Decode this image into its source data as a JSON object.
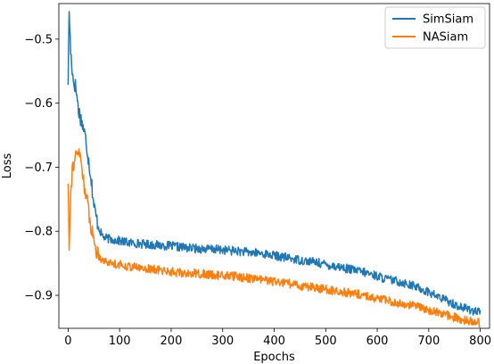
{
  "chart_data": {
    "type": "line",
    "title": "",
    "xlabel": "Epochs",
    "ylabel": "Loss",
    "xlim": [
      -18,
      818
    ],
    "ylim": [
      -0.9515,
      -0.4445
    ],
    "xticks": [
      0,
      100,
      200,
      300,
      400,
      500,
      600,
      700,
      800
    ],
    "yticks": [
      -0.9,
      -0.8,
      -0.7,
      -0.6,
      -0.5
    ],
    "ytick_labels": [
      "−0.9",
      "−0.8",
      "−0.7",
      "−0.6",
      "−0.5"
    ],
    "legend_position": "top-right",
    "grid": false,
    "series": [
      {
        "name": "SimSiam",
        "color": "#1f77b4",
        "x": [
          0,
          2,
          5,
          10,
          15,
          20,
          25,
          30,
          35,
          40,
          45,
          50,
          55,
          60,
          65,
          70,
          80,
          100,
          120,
          150,
          180,
          200,
          220,
          250,
          280,
          300,
          330,
          350,
          380,
          400,
          430,
          450,
          480,
          500,
          530,
          550,
          580,
          600,
          620,
          650,
          680,
          700,
          720,
          740,
          760,
          780,
          800
        ],
        "values": [
          -0.565,
          -0.456,
          -0.52,
          -0.565,
          -0.575,
          -0.61,
          -0.625,
          -0.64,
          -0.66,
          -0.69,
          -0.72,
          -0.76,
          -0.78,
          -0.795,
          -0.805,
          -0.81,
          -0.812,
          -0.815,
          -0.818,
          -0.82,
          -0.822,
          -0.823,
          -0.825,
          -0.827,
          -0.828,
          -0.829,
          -0.831,
          -0.833,
          -0.835,
          -0.838,
          -0.842,
          -0.845,
          -0.848,
          -0.852,
          -0.856,
          -0.86,
          -0.865,
          -0.87,
          -0.875,
          -0.88,
          -0.888,
          -0.895,
          -0.903,
          -0.91,
          -0.918,
          -0.922,
          -0.928
        ]
      },
      {
        "name": "NASiam",
        "color": "#ff7f0e",
        "x": [
          0,
          2,
          4,
          6,
          8,
          10,
          15,
          20,
          25,
          30,
          35,
          40,
          45,
          50,
          55,
          60,
          65,
          70,
          80,
          100,
          120,
          150,
          180,
          200,
          220,
          250,
          280,
          300,
          330,
          350,
          380,
          400,
          430,
          450,
          480,
          500,
          530,
          550,
          580,
          600,
          620,
          650,
          680,
          700,
          720,
          740,
          760,
          780,
          800
        ],
        "values": [
          -0.72,
          -0.82,
          -0.76,
          -0.73,
          -0.705,
          -0.695,
          -0.685,
          -0.675,
          -0.69,
          -0.72,
          -0.745,
          -0.77,
          -0.795,
          -0.815,
          -0.83,
          -0.838,
          -0.843,
          -0.846,
          -0.849,
          -0.852,
          -0.855,
          -0.858,
          -0.861,
          -0.863,
          -0.865,
          -0.866,
          -0.868,
          -0.869,
          -0.871,
          -0.873,
          -0.876,
          -0.879,
          -0.882,
          -0.885,
          -0.888,
          -0.891,
          -0.894,
          -0.897,
          -0.901,
          -0.905,
          -0.909,
          -0.913,
          -0.918,
          -0.923,
          -0.928,
          -0.932,
          -0.937,
          -0.94,
          -0.943
        ]
      }
    ]
  }
}
